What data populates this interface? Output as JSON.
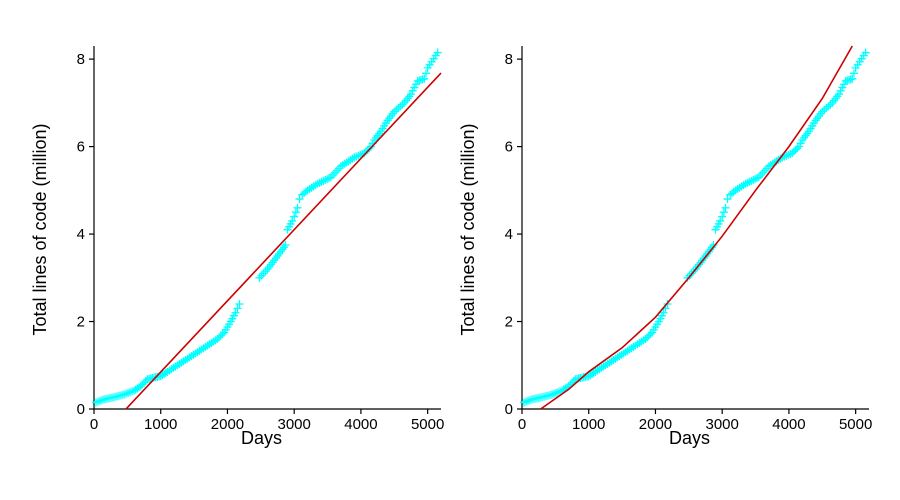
{
  "colors": {
    "points": "#00ffff",
    "fit": "#cc0000",
    "axis": "#000000"
  },
  "chart_data": [
    {
      "type": "scatter",
      "panel": "left",
      "fit_type": "linear",
      "xlabel": "Days",
      "ylabel": "Total lines of code (million)",
      "xlim": [
        0,
        5200
      ],
      "ylim": [
        0,
        8.3
      ],
      "xticks": [
        0,
        1000,
        2000,
        3000,
        4000,
        5000
      ],
      "yticks": [
        0,
        2,
        4,
        6,
        8
      ],
      "xtick_labels": [
        "0",
        "1000",
        "2000",
        "3000",
        "4000",
        "5000"
      ],
      "ytick_labels": [
        "0",
        "2",
        "4",
        "6",
        "8"
      ],
      "grid": false,
      "marker": "plus",
      "points": [
        [
          30,
          0.15
        ],
        [
          150,
          0.22
        ],
        [
          300,
          0.27
        ],
        [
          450,
          0.33
        ],
        [
          600,
          0.42
        ],
        [
          700,
          0.52
        ],
        [
          800,
          0.68
        ],
        [
          900,
          0.72
        ],
        [
          1000,
          0.75
        ],
        [
          1100,
          0.85
        ],
        [
          1250,
          1.0
        ],
        [
          1400,
          1.15
        ],
        [
          1550,
          1.3
        ],
        [
          1700,
          1.45
        ],
        [
          1850,
          1.6
        ],
        [
          1950,
          1.75
        ],
        [
          2050,
          2.0
        ],
        [
          2120,
          2.2
        ],
        [
          2180,
          2.4
        ],
        [
          2480,
          3.0
        ],
        [
          2600,
          3.2
        ],
        [
          2700,
          3.4
        ],
        [
          2800,
          3.6
        ],
        [
          2870,
          3.75
        ],
        [
          2900,
          4.1
        ],
        [
          2970,
          4.3
        ],
        [
          3000,
          4.4
        ],
        [
          3050,
          4.6
        ],
        [
          3080,
          4.8
        ],
        [
          3120,
          4.9
        ],
        [
          3200,
          5.0
        ],
        [
          3350,
          5.15
        ],
        [
          3550,
          5.3
        ],
        [
          3700,
          5.55
        ],
        [
          3900,
          5.75
        ],
        [
          4050,
          5.85
        ],
        [
          4150,
          6.0
        ],
        [
          4200,
          6.15
        ],
        [
          4300,
          6.35
        ],
        [
          4400,
          6.6
        ],
        [
          4500,
          6.8
        ],
        [
          4650,
          7.0
        ],
        [
          4750,
          7.2
        ],
        [
          4850,
          7.5
        ],
        [
          4950,
          7.55
        ],
        [
          5000,
          7.8
        ],
        [
          5150,
          8.15
        ]
      ],
      "fit_line": [
        [
          480,
          0
        ],
        [
          5200,
          7.68
        ]
      ]
    },
    {
      "type": "scatter",
      "panel": "right",
      "fit_type": "curve",
      "xlabel": "Days",
      "ylabel": "Total lines of code (million)",
      "xlim": [
        0,
        5200
      ],
      "ylim": [
        0,
        8.3
      ],
      "xticks": [
        0,
        1000,
        2000,
        3000,
        4000,
        5000
      ],
      "yticks": [
        0,
        2,
        4,
        6,
        8
      ],
      "xtick_labels": [
        "0",
        "1000",
        "2000",
        "3000",
        "4000",
        "5000"
      ],
      "ytick_labels": [
        "0",
        "2",
        "4",
        "6",
        "8"
      ],
      "grid": false,
      "marker": "plus",
      "points": [
        [
          30,
          0.15
        ],
        [
          150,
          0.22
        ],
        [
          300,
          0.27
        ],
        [
          450,
          0.33
        ],
        [
          600,
          0.42
        ],
        [
          700,
          0.52
        ],
        [
          800,
          0.68
        ],
        [
          900,
          0.72
        ],
        [
          1000,
          0.75
        ],
        [
          1100,
          0.85
        ],
        [
          1250,
          1.0
        ],
        [
          1400,
          1.15
        ],
        [
          1550,
          1.3
        ],
        [
          1700,
          1.45
        ],
        [
          1850,
          1.6
        ],
        [
          1950,
          1.75
        ],
        [
          2050,
          2.0
        ],
        [
          2120,
          2.2
        ],
        [
          2180,
          2.4
        ],
        [
          2480,
          3.0
        ],
        [
          2600,
          3.2
        ],
        [
          2700,
          3.4
        ],
        [
          2800,
          3.6
        ],
        [
          2870,
          3.75
        ],
        [
          2900,
          4.1
        ],
        [
          2970,
          4.3
        ],
        [
          3000,
          4.4
        ],
        [
          3050,
          4.6
        ],
        [
          3080,
          4.8
        ],
        [
          3120,
          4.9
        ],
        [
          3200,
          5.0
        ],
        [
          3350,
          5.15
        ],
        [
          3550,
          5.3
        ],
        [
          3700,
          5.55
        ],
        [
          3900,
          5.75
        ],
        [
          4050,
          5.85
        ],
        [
          4150,
          6.0
        ],
        [
          4200,
          6.15
        ],
        [
          4300,
          6.35
        ],
        [
          4400,
          6.6
        ],
        [
          4500,
          6.8
        ],
        [
          4650,
          7.0
        ],
        [
          4750,
          7.2
        ],
        [
          4850,
          7.5
        ],
        [
          4950,
          7.55
        ],
        [
          5000,
          7.8
        ],
        [
          5150,
          8.15
        ]
      ],
      "fit_line": [
        [
          280,
          0
        ],
        [
          700,
          0.45
        ],
        [
          1000,
          0.85
        ],
        [
          1500,
          1.4
        ],
        [
          2000,
          2.1
        ],
        [
          2500,
          3.0
        ],
        [
          3000,
          3.95
        ],
        [
          3500,
          5.0
        ],
        [
          4000,
          6.0
        ],
        [
          4500,
          7.1
        ],
        [
          4950,
          8.3
        ]
      ]
    }
  ]
}
